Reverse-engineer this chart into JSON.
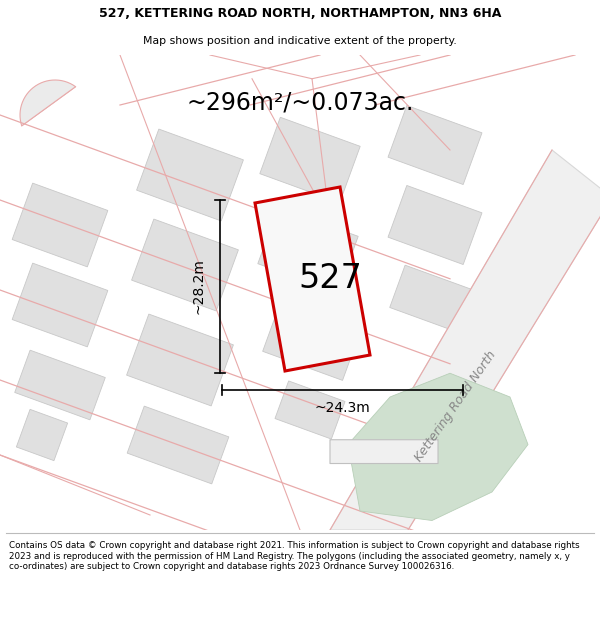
{
  "title_line1": "527, KETTERING ROAD NORTH, NORTHAMPTON, NN3 6HA",
  "title_line2": "Map shows position and indicative extent of the property.",
  "area_label": "~296m²/~0.073ac.",
  "property_number": "527",
  "width_label": "~24.3m",
  "height_label": "~28.2m",
  "road_label": "Kettering Road North",
  "footer_text": "Contains OS data © Crown copyright and database right 2021. This information is subject to Crown copyright and database rights 2023 and is reproduced with the permission of HM Land Registry. The polygons (including the associated geometry, namely x, y co-ordinates) are subject to Crown copyright and database rights 2023 Ordnance Survey 100026316.",
  "bg_color": "#ffffff",
  "map_bg": "#f2f2f2",
  "plot_fill": "#f0f0f0",
  "plot_edge": "#cc0000",
  "pink_line_color": "#e8aaaa",
  "grey_poly_fill": "#e0e0e0",
  "grey_poly_edge": "#c8c8c8",
  "green_area_color": "#cfe0cf",
  "road_fill": "#f0f0f0",
  "road_edge": "#d0d0d0",
  "footer_fontsize": 6.3,
  "title_fontsize": 9,
  "area_fontsize": 17,
  "property_num_fontsize": 24,
  "dimension_fontsize": 10,
  "road_label_fontsize": 9
}
